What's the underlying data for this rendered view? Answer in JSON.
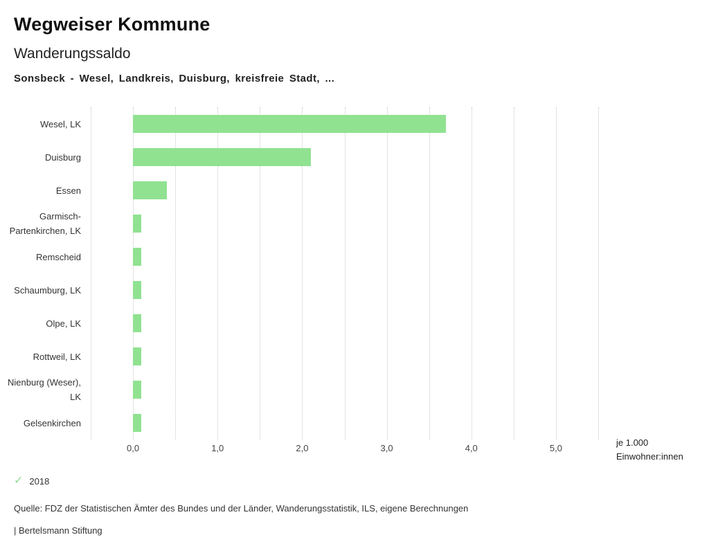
{
  "header": {
    "title": "Wegweiser Kommune",
    "subtitle": "Wanderungssaldo",
    "subject": "Sonsbeck - Wesel, Landkreis, Duisburg, kreisfreie Stadt, ..."
  },
  "chart_data": {
    "type": "bar",
    "orientation": "horizontal",
    "categories": [
      "Wesel, LK",
      "Duisburg",
      "Essen",
      "Garmisch-Partenkirchen, LK",
      "Remscheid",
      "Schaumburg, LK",
      "Olpe, LK",
      "Rottweil, LK",
      "Nienburg (Weser), LK",
      "Gelsenkirchen"
    ],
    "values": [
      3.7,
      2.1,
      0.4,
      0.1,
      0.1,
      0.1,
      0.1,
      0.1,
      0.1,
      0.1
    ],
    "series_name": "2018",
    "xlim": [
      -0.5,
      5.5
    ],
    "grid_step": 0.5,
    "x_ticks": [
      0,
      1,
      2,
      3,
      4,
      5
    ],
    "x_tick_labels": [
      "0,0",
      "1,0",
      "2,0",
      "3,0",
      "4,0",
      "5,0"
    ],
    "unit_label_line1": "je 1.000",
    "unit_label_line2": "Einwohner:innen",
    "bar_color": "#90e291",
    "grid": "dotted-vertical",
    "legend_position": "bottom-left"
  },
  "legend": {
    "check_icon": "checkmark",
    "check_color": "#90d991",
    "label": "2018"
  },
  "footer": {
    "source": "Quelle: FDZ der Statistischen Ämter des Bundes und der Länder, Wanderungsstatistik, ILS, eigene Berechnungen",
    "brand": "| Bertelsmann Stiftung"
  }
}
